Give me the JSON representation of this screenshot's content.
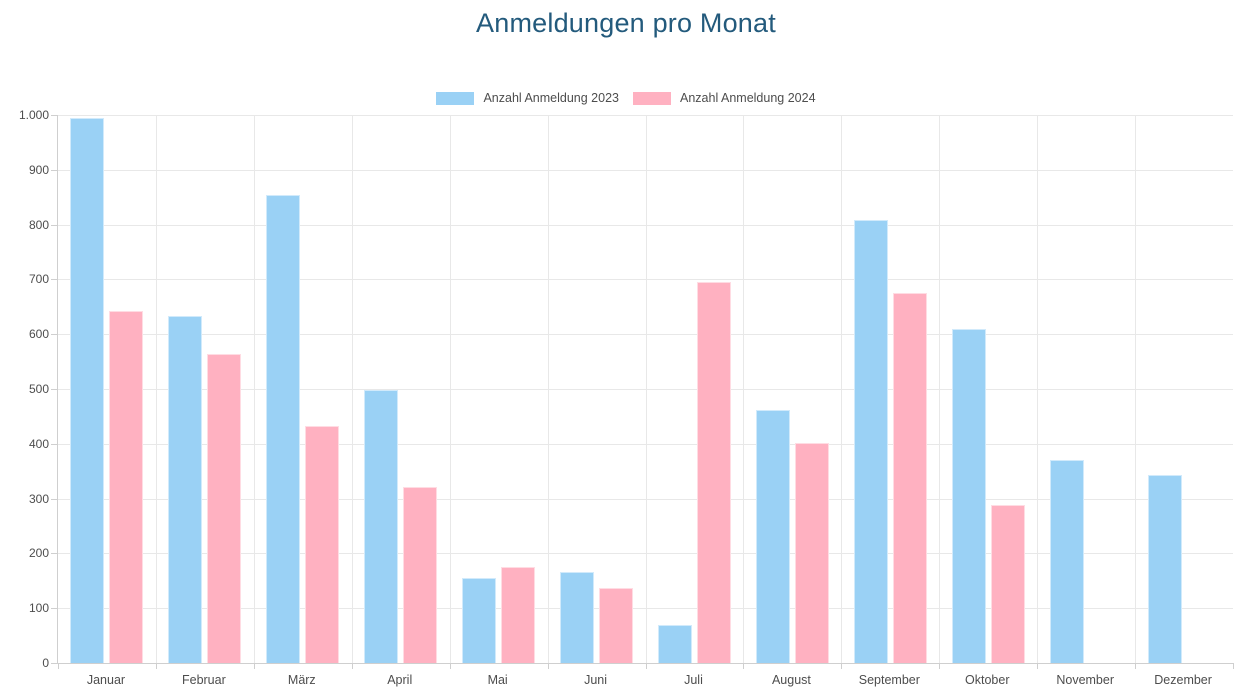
{
  "title": "Anmeldungen pro Monat",
  "title_color": "#235a7c",
  "chart_data": {
    "type": "bar",
    "title": "Anmeldungen pro Monat",
    "categories": [
      "Januar",
      "Februar",
      "März",
      "April",
      "Mai",
      "Juni",
      "Juli",
      "August",
      "September",
      "Oktober",
      "November",
      "Dezember"
    ],
    "series": [
      {
        "name": "Anzahl Anmeldung 2023",
        "color": "#9ad1f5",
        "values": [
          995,
          633,
          854,
          498,
          156,
          166,
          69,
          462,
          808,
          610,
          371,
          343
        ]
      },
      {
        "name": "Anzahl Anmeldung 2024",
        "color": "#ffb1c1",
        "values": [
          643,
          564,
          433,
          321,
          176,
          136,
          695,
          402,
          676,
          289,
          null,
          null
        ]
      }
    ],
    "ylim": [
      0,
      1000
    ],
    "ytick_step": 100,
    "ytick_labels": [
      "0",
      "100",
      "200",
      "300",
      "400",
      "500",
      "600",
      "700",
      "800",
      "900",
      "1.000"
    ],
    "grid": true,
    "legend_position": "top"
  }
}
